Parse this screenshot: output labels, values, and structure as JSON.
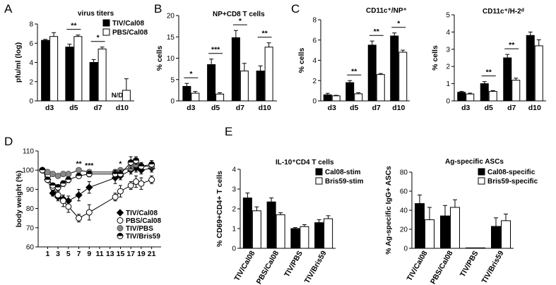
{
  "panel_labels": [
    "A",
    "B",
    "C",
    "D",
    "E"
  ],
  "chart_data": [
    {
      "panel": "A",
      "type": "bar",
      "title": "virus titers",
      "ylabel": "pfu/ml (log)",
      "categories": [
        "d3",
        "d5",
        "d7",
        "d10"
      ],
      "yticks": [
        "0",
        "2",
        "4",
        "6",
        "8"
      ],
      "ylim": [
        0,
        8
      ],
      "series": [
        {
          "name": "TIV/Cal08",
          "color": "#000000",
          "values": [
            6.3,
            5.6,
            4.0,
            null
          ],
          "errors": [
            0.1,
            0.3,
            0.3,
            0
          ]
        },
        {
          "name": "PBS/Cal08",
          "color": "#ffffff",
          "values": [
            6.7,
            6.7,
            5.4,
            1.1
          ],
          "errors": [
            0.4,
            0.15,
            0.2,
            1.2
          ]
        }
      ],
      "annotations": [
        {
          "text": "**",
          "category": 1
        },
        {
          "text": "*",
          "category": 2
        },
        {
          "text": "N/D",
          "category": 3
        }
      ],
      "legend": "top-right"
    },
    {
      "panel": "B",
      "type": "bar",
      "title": "NP+CD8 T cells",
      "ylabel": "% cells",
      "categories": [
        "d3",
        "d5",
        "d7",
        "d10"
      ],
      "yticks": [
        "0",
        "5",
        "10",
        "15",
        "20"
      ],
      "ylim": [
        0,
        20
      ],
      "series": [
        {
          "values": [
            3.4,
            8.5,
            14.8,
            7.0
          ],
          "errors": [
            0.7,
            1.3,
            1.7,
            1.2
          ],
          "color": "#000000"
        },
        {
          "values": [
            1.8,
            1.6,
            7.0,
            12.6
          ],
          "errors": [
            0.4,
            0.3,
            1.8,
            1.0
          ],
          "color": "#ffffff"
        }
      ],
      "significance": [
        "*",
        "***",
        "*",
        "**"
      ]
    },
    {
      "panel": "C",
      "type": "bar",
      "title": "CD11c⁺/NP⁺",
      "ylabel": "% cells",
      "categories": [
        "d3",
        "d5",
        "d7",
        "d10"
      ],
      "yticks": [
        "0",
        "2",
        "4",
        "6",
        "8"
      ],
      "ylim": [
        0,
        8
      ],
      "series": [
        {
          "values": [
            0.6,
            1.8,
            5.5,
            6.4
          ],
          "errors": [
            0.15,
            0.2,
            0.4,
            0.3
          ],
          "color": "#000000"
        },
        {
          "values": [
            0.5,
            0.7,
            2.6,
            4.8
          ],
          "errors": [
            0.05,
            0.1,
            0.1,
            0.2
          ],
          "color": "#ffffff"
        }
      ],
      "significance": [
        "",
        "**",
        "**",
        "*"
      ]
    },
    {
      "panel": "C2",
      "type": "bar",
      "title": "CD11c⁺/H-2ᵈ",
      "ylabel": "% cells",
      "categories": [
        "d3",
        "d5",
        "d7",
        "d10"
      ],
      "yticks": [
        "0",
        "1",
        "2",
        "3",
        "4",
        "5"
      ],
      "ylim": [
        0,
        5
      ],
      "series": [
        {
          "values": [
            0.5,
            1.0,
            2.5,
            3.8
          ],
          "errors": [
            0.05,
            0.12,
            0.2,
            0.2
          ],
          "color": "#000000"
        },
        {
          "values": [
            0.4,
            0.55,
            1.2,
            3.2
          ],
          "errors": [
            0.05,
            0.05,
            0.12,
            0.35
          ],
          "color": "#ffffff"
        }
      ],
      "significance": [
        "",
        "**",
        "**",
        ""
      ]
    },
    {
      "panel": "D",
      "type": "line",
      "ylabel": "body weight (%)",
      "x": [
        0,
        1,
        2,
        3,
        4,
        5,
        7,
        9,
        14,
        15,
        17,
        18,
        19,
        21
      ],
      "xticks": [
        "1",
        "3",
        "5",
        "7",
        "9",
        "11",
        "13",
        "15",
        "17",
        "19",
        "21"
      ],
      "yticks": [
        "60",
        "70",
        "80",
        "90",
        "100",
        "110"
      ],
      "ylim": [
        60,
        110
      ],
      "series": [
        {
          "name": "TIV/Cal08",
          "marker": "diamond-filled",
          "values": [
            100,
            95,
            88,
            86,
            85,
            84,
            87,
            91,
            96,
            97,
            100,
            101,
            100,
            101
          ],
          "errors": [
            0,
            1,
            1.5,
            2,
            2,
            2.5,
            3,
            3,
            3,
            2,
            2,
            2,
            2,
            2
          ]
        },
        {
          "name": "PBS/Cal08",
          "marker": "circle-open",
          "values": [
            100,
            97,
            91,
            87,
            84,
            81,
            75,
            78,
            86,
            89,
            92,
            94,
            93,
            95
          ],
          "errors": [
            0,
            1,
            1.5,
            2,
            3,
            3,
            2,
            4,
            2,
            3,
            2,
            3,
            3,
            2
          ]
        },
        {
          "name": "TIV/PBS",
          "marker": "circle-gray",
          "values": [
            100,
            99,
            98,
            97,
            98,
            98,
            100,
            99,
            99,
            100,
            101,
            103,
            102,
            102
          ],
          "errors": [
            0,
            0.5,
            0.5,
            0.5,
            0.5,
            0.5,
            1,
            1,
            1,
            1,
            1.5,
            2,
            1.5,
            1.5
          ]
        },
        {
          "name": "TIV/Bris59",
          "marker": "circle-half",
          "values": [
            100,
            95,
            92,
            91,
            93,
            95,
            97,
            98,
            98,
            98,
            104,
            105,
            102,
            103
          ],
          "errors": [
            0,
            1,
            1,
            1.5,
            1.5,
            1.5,
            1,
            1.5,
            2,
            2,
            3,
            2,
            2,
            2
          ]
        }
      ],
      "annotations": [
        {
          "text": "**",
          "x": 7
        },
        {
          "text": "***",
          "x": 9
        },
        {
          "text": "*",
          "x": 15
        }
      ],
      "legend": "bottom-right"
    },
    {
      "panel": "E",
      "type": "bar",
      "title": "IL-10⁺CD4 T cells",
      "ylabel": "% CD69+CD4+ T cells",
      "categories": [
        "TIV/Cal08",
        "PBS/Cal08",
        "TIV/PBS",
        "TIV/Bris59"
      ],
      "yticks": [
        "0",
        "1",
        "2",
        "3",
        "4"
      ],
      "ylim": [
        0,
        4
      ],
      "series": [
        {
          "name": "Cal08-stim",
          "color": "#000000",
          "values": [
            2.55,
            2.35,
            1.0,
            1.3
          ],
          "errors": [
            0.25,
            0.2,
            0.05,
            0.15
          ]
        },
        {
          "name": "Bris59-stim",
          "color": "#ffffff",
          "values": [
            1.9,
            1.7,
            1.1,
            1.5
          ],
          "errors": [
            0.2,
            0.1,
            0.1,
            0.15
          ]
        }
      ],
      "legend": "top-right"
    },
    {
      "panel": "E2",
      "type": "bar",
      "title": "Ag-specific ASCs",
      "ylabel": "% Ag-specific IgG+ ASCs",
      "categories": [
        "TIV/Cal08",
        "PBS/Cal08",
        "TIV/PBS",
        "TIV/Bris59"
      ],
      "yticks": [
        "0",
        "20",
        "40",
        "60",
        "80"
      ],
      "ylim": [
        0,
        80
      ],
      "series": [
        {
          "name": "Cal08-specific",
          "color": "#000000",
          "values": [
            47,
            34,
            0.5,
            23
          ],
          "errors": [
            9,
            11,
            0,
            9
          ]
        },
        {
          "name": "Bris59-specific",
          "color": "#ffffff",
          "values": [
            30,
            43,
            0.5,
            29
          ],
          "errors": [
            13,
            8,
            0,
            7
          ]
        }
      ],
      "legend": "top-right"
    }
  ]
}
